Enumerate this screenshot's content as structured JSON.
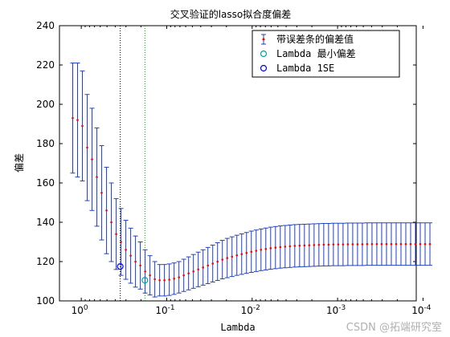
{
  "chart_data": {
    "type": "errorbar",
    "title": "交叉验证的lasso拟合度偏差",
    "xlabel": "Lambda",
    "ylabel": "偏差",
    "x_scale": "log",
    "x_reversed": true,
    "xlim": [
      1.8,
      0.00012
    ],
    "ylim": [
      100,
      240
    ],
    "yticks": [
      100,
      120,
      140,
      160,
      180,
      200,
      220,
      240
    ],
    "xticks": [
      {
        "value": 1,
        "base": "10",
        "exp": "0"
      },
      {
        "value": 0.1,
        "base": "10",
        "exp": "-1"
      },
      {
        "value": 0.01,
        "base": "10",
        "exp": "-2"
      },
      {
        "value": 0.001,
        "base": "10",
        "exp": "-3"
      },
      {
        "value": 0.0001,
        "base": "10",
        "exp": "-4"
      }
    ],
    "legend": {
      "placement": "top-right",
      "entries": [
        {
          "label": "带误差条的偏差值",
          "marker": "errorbar",
          "color": "#1f3fbf"
        },
        {
          "label": "Lambda 最小偏差",
          "marker": "circle",
          "color": "#00a3a3"
        },
        {
          "label": "Lambda 1SE",
          "marker": "circle",
          "color": "#0000ff"
        }
      ]
    },
    "lambda_min": 0.18,
    "lambda_1se": 0.35,
    "deviance_at_lambda_min": 110.5,
    "deviance_at_lambda_1se": 117.5,
    "series": [
      {
        "name": "带误差条的偏差值",
        "color": "#ff0000",
        "errorbar_color": "#1f3fbf",
        "x_log10_start": 0.1,
        "x_log10_step": -0.0565,
        "n_points": 75,
        "y": [
          193,
          192,
          189,
          178,
          172,
          163,
          155,
          146,
          140,
          134,
          130,
          126,
          123,
          120,
          118,
          115,
          113,
          111,
          110.5,
          110.5,
          110.8,
          111.3,
          112,
          113,
          114,
          115,
          116,
          117,
          118,
          119,
          120,
          121,
          121.8,
          122.5,
          123.2,
          123.8,
          124.4,
          125,
          125.5,
          126,
          126.4,
          126.8,
          127.1,
          127.4,
          127.6,
          127.8,
          128,
          128.1,
          128.2,
          128.3,
          128.4,
          128.5,
          128.6,
          128.6,
          128.7,
          128.7,
          128.7,
          128.8,
          128.8,
          128.8,
          128.8,
          128.9,
          128.9,
          128.9,
          128.9,
          128.9,
          128.9,
          128.9,
          128.9,
          128.9,
          128.9,
          128.9,
          128.9,
          128.9,
          128.9
        ],
        "err": [
          28,
          29,
          28,
          27,
          26,
          25,
          24,
          22,
          20,
          18,
          17,
          15,
          14,
          13,
          12,
          11,
          10,
          9,
          8,
          8,
          8,
          8,
          8,
          8.2,
          8.4,
          8.6,
          8.8,
          9,
          9.2,
          9.4,
          9.6,
          9.8,
          10,
          10.1,
          10.2,
          10.3,
          10.4,
          10.5,
          10.55,
          10.6,
          10.65,
          10.7,
          10.72,
          10.74,
          10.76,
          10.78,
          10.8,
          10.8,
          10.8,
          10.8,
          10.8,
          10.8,
          10.8,
          10.8,
          10.8,
          10.8,
          10.8,
          10.8,
          10.8,
          10.8,
          10.8,
          10.8,
          10.8,
          10.8,
          10.8,
          10.8,
          10.8,
          10.8,
          10.8,
          10.8,
          10.8,
          10.8,
          10.8,
          10.8,
          10.8
        ]
      }
    ]
  },
  "watermark": "CSDN @拓端研究室"
}
